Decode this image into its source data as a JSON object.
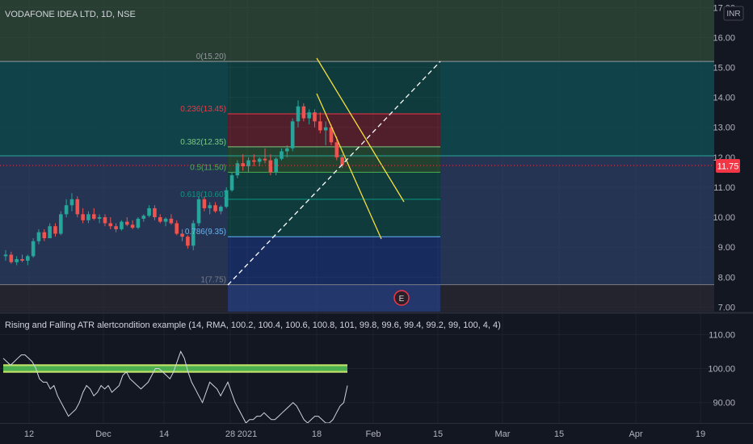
{
  "chart_data": [
    {
      "type": "candlestick",
      "title": "VODAFONE IDEA LTD, 1D, NSE",
      "currency_badge": "INR",
      "price_ticks": [
        "7.00",
        "8.00",
        "9.00",
        "10.00",
        "11.00",
        "12.00",
        "13.00",
        "14.00",
        "15.00",
        "16.00",
        "17.00"
      ],
      "ylim": [
        6.85,
        17.25
      ],
      "last_price": {
        "value": 11.75,
        "label": "11.75",
        "color": "#f23645"
      },
      "earnings_marker": "E",
      "fib_levels": [
        {
          "ratio": "0",
          "price": 15.2,
          "label": "0(15.20)",
          "color": "#9598a1",
          "zone": "#089981"
        },
        {
          "ratio": "0.236",
          "price": 13.45,
          "label": "0.236(13.45)",
          "color": "#f23645",
          "zone": "#f23645"
        },
        {
          "ratio": "0.382",
          "price": 12.35,
          "label": "0.382(12.35)",
          "color": "#81c784",
          "zone": "#4caf50"
        },
        {
          "ratio": "0.5",
          "price": 11.5,
          "label": "0.5(11.50)",
          "color": "#4caf50",
          "zone": "#089981"
        },
        {
          "ratio": "0.618",
          "price": 10.6,
          "label": "0.618(10.60)",
          "color": "#089981",
          "zone": "#089981"
        },
        {
          "ratio": "0.786",
          "price": 9.35,
          "label": "0.786(9.35)",
          "color": "#64b5f6",
          "zone": "#2962ff"
        },
        {
          "ratio": "1",
          "price": 7.75,
          "label": "1(7.75)",
          "color": "#787b86",
          "zone": "#787b86"
        }
      ],
      "candles": [
        [
          8.7,
          8.9,
          8.55,
          8.75
        ],
        [
          8.75,
          8.85,
          8.45,
          8.5
        ],
        [
          8.5,
          8.7,
          8.4,
          8.6
        ],
        [
          8.6,
          8.75,
          8.5,
          8.55
        ],
        [
          8.55,
          8.75,
          8.4,
          8.7
        ],
        [
          8.7,
          9.3,
          8.65,
          9.2
        ],
        [
          9.2,
          9.6,
          9.1,
          9.5
        ],
        [
          9.5,
          9.6,
          9.2,
          9.3
        ],
        [
          9.3,
          9.8,
          9.3,
          9.7
        ],
        [
          9.7,
          9.8,
          9.35,
          9.45
        ],
        [
          9.45,
          10.2,
          9.4,
          10.1
        ],
        [
          10.1,
          10.6,
          10.0,
          10.4
        ],
        [
          10.4,
          10.8,
          10.2,
          10.6
        ],
        [
          10.6,
          10.7,
          10.0,
          10.1
        ],
        [
          10.1,
          10.3,
          9.8,
          9.9
        ],
        [
          9.9,
          10.2,
          9.8,
          10.1
        ],
        [
          10.1,
          10.3,
          9.9,
          9.95
        ],
        [
          9.95,
          10.1,
          9.8,
          10.0
        ],
        [
          10.0,
          10.1,
          9.7,
          9.8
        ],
        [
          9.8,
          10.0,
          9.6,
          9.7
        ],
        [
          9.7,
          9.8,
          9.5,
          9.6
        ],
        [
          9.6,
          9.9,
          9.55,
          9.85
        ],
        [
          9.85,
          10.0,
          9.7,
          9.75
        ],
        [
          9.75,
          9.9,
          9.6,
          9.65
        ],
        [
          9.65,
          10.0,
          9.6,
          9.95
        ],
        [
          9.95,
          10.1,
          9.85,
          10.05
        ],
        [
          10.05,
          10.4,
          10.0,
          10.3
        ],
        [
          10.3,
          10.4,
          9.9,
          10.0
        ],
        [
          10.0,
          10.1,
          9.8,
          9.85
        ],
        [
          9.85,
          10.0,
          9.7,
          9.95
        ],
        [
          9.95,
          10.1,
          9.75,
          9.8
        ],
        [
          9.8,
          9.9,
          9.4,
          9.45
        ],
        [
          9.45,
          9.6,
          9.2,
          9.35
        ],
        [
          9.35,
          9.4,
          8.95,
          9.05
        ],
        [
          9.05,
          9.9,
          8.9,
          9.8
        ],
        [
          9.8,
          10.7,
          9.7,
          10.6
        ],
        [
          10.6,
          10.7,
          10.2,
          10.3
        ],
        [
          10.3,
          10.5,
          10.1,
          10.4
        ],
        [
          10.4,
          10.5,
          10.15,
          10.2
        ],
        [
          10.2,
          10.4,
          10.1,
          10.35
        ],
        [
          10.35,
          11.0,
          10.3,
          10.9
        ],
        [
          10.9,
          11.5,
          10.85,
          11.4
        ],
        [
          11.4,
          11.9,
          11.3,
          11.8
        ],
        [
          11.8,
          12.1,
          11.55,
          11.7
        ],
        [
          11.7,
          12.0,
          11.5,
          11.9
        ],
        [
          11.9,
          12.1,
          11.7,
          11.85
        ],
        [
          11.85,
          12.0,
          11.7,
          11.95
        ],
        [
          11.95,
          12.3,
          11.8,
          11.9
        ],
        [
          11.9,
          12.1,
          11.4,
          11.5
        ],
        [
          11.5,
          12.0,
          11.4,
          11.95
        ],
        [
          11.95,
          12.3,
          11.9,
          12.2
        ],
        [
          12.2,
          12.4,
          12.0,
          12.3
        ],
        [
          12.3,
          13.3,
          12.2,
          13.2
        ],
        [
          13.2,
          13.9,
          13.0,
          13.7
        ],
        [
          13.7,
          13.8,
          13.2,
          13.3
        ],
        [
          13.3,
          13.6,
          13.1,
          13.5
        ],
        [
          13.5,
          13.6,
          13.0,
          13.2
        ],
        [
          13.2,
          13.5,
          12.8,
          12.9
        ],
        [
          12.9,
          13.2,
          12.4,
          13.0
        ],
        [
          13.0,
          13.1,
          12.4,
          12.5
        ],
        [
          12.5,
          12.7,
          11.9,
          12.0
        ],
        [
          12.0,
          12.1,
          11.65,
          11.75
        ]
      ]
    },
    {
      "type": "line",
      "title": "Rising and Falling ATR alertcondition example (14, RMA, 100.2, 100.4, 100.6, 100.8, 101, 99.8, 99.6, 99.4, 99.2, 99, 100, 4, 4)",
      "y_ticks": [
        "90.00",
        "100.00",
        "110.00"
      ],
      "ylim": [
        84,
        116
      ],
      "threshold_band": [
        99.0,
        101.0
      ],
      "values": [
        103,
        102,
        101,
        102,
        103,
        104,
        104,
        103,
        102,
        100,
        97,
        96,
        96,
        94,
        95,
        92,
        90,
        88,
        86,
        87,
        88,
        90,
        93,
        95,
        94,
        92,
        93,
        95,
        94,
        95,
        93,
        94,
        95,
        98,
        99,
        97,
        96,
        95,
        94,
        95,
        96,
        98,
        100,
        100,
        99,
        98,
        97,
        99,
        102,
        105,
        103,
        99,
        96,
        94,
        92,
        90,
        93,
        96,
        95,
        94,
        92,
        94,
        96,
        93,
        90,
        88,
        86,
        84,
        85,
        85,
        86,
        86,
        87,
        86,
        85,
        85,
        86,
        87,
        88,
        89,
        90,
        89,
        87,
        85,
        84,
        85,
        86,
        86,
        85,
        84,
        84,
        85,
        87,
        89,
        90,
        95
      ]
    }
  ],
  "time_axis": {
    "labels": [
      "12",
      "Dec",
      "14",
      "28",
      "2021",
      "18",
      "Feb",
      "15",
      "Mar",
      "15",
      "Apr",
      "19"
    ]
  }
}
